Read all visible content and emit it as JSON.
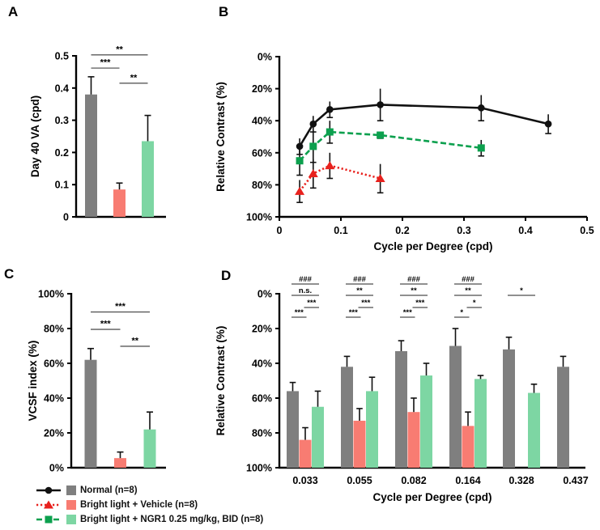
{
  "figure": {
    "panels": [
      {
        "letter": "A"
      },
      {
        "letter": "B"
      },
      {
        "letter": "C"
      },
      {
        "letter": "D"
      }
    ]
  },
  "legend": {
    "items": [
      {
        "label": "Normal (n=8)",
        "line_color": "#111111",
        "marker": "circle",
        "dash": "solid",
        "bar_color": "#7F7F7F"
      },
      {
        "label": "Bright light + Vehicle (n=8)",
        "line_color": "#E8211D",
        "marker": "triangle",
        "dash": "dotted",
        "bar_color": "#F87C72"
      },
      {
        "label": "Bright light + NGR1 0.25 mg/kg, BID (n=8)",
        "line_color": "#0CA04E",
        "marker": "square",
        "dash": "dashed",
        "bar_color": "#7DD6A3"
      }
    ]
  },
  "chart_data": [
    {
      "id": "A",
      "type": "bar",
      "ylabel": "Day 40 VA (cpd)",
      "ylim": [
        0,
        0.5
      ],
      "yticks": [
        {
          "v": 0,
          "label": "0"
        },
        {
          "v": 0.1,
          "label": "0.1"
        },
        {
          "v": 0.2,
          "label": "0.2"
        },
        {
          "v": 0.3,
          "label": "0.3"
        },
        {
          "v": 0.4,
          "label": "0.4"
        },
        {
          "v": 0.5,
          "label": "0.5"
        }
      ],
      "categories": [
        "Normal",
        "Bright light + Vehicle",
        "Bright light + NGR1"
      ],
      "values": [
        0.38,
        0.085,
        0.235
      ],
      "errors": [
        0.055,
        0.02,
        0.08
      ],
      "significance": [
        {
          "pair": [
            0,
            1
          ],
          "label": "***",
          "y": 0.462
        },
        {
          "pair": [
            0,
            2
          ],
          "label": "**",
          "y": 0.503
        },
        {
          "pair": [
            1,
            2
          ],
          "label": "**",
          "y": 0.415
        }
      ]
    },
    {
      "id": "B",
      "type": "line",
      "xlabel": "Cycle per Degree (cpd)",
      "ylabel": "Relative Contrast (%)",
      "y_axis_inverted": true,
      "xlim": [
        0,
        0.5
      ],
      "ylim": [
        0,
        100
      ],
      "xticks": [
        {
          "v": 0,
          "label": "0"
        },
        {
          "v": 0.1,
          "label": "0.1"
        },
        {
          "v": 0.2,
          "label": "0.2"
        },
        {
          "v": 0.3,
          "label": "0.3"
        },
        {
          "v": 0.4,
          "label": "0.4"
        },
        {
          "v": 0.5,
          "label": "0.5"
        }
      ],
      "yticks": [
        {
          "v": 0,
          "label": "0%"
        },
        {
          "v": 20,
          "label": "20%"
        },
        {
          "v": 40,
          "label": "40%"
        },
        {
          "v": 60,
          "label": "60%"
        },
        {
          "v": 80,
          "label": "80%"
        },
        {
          "v": 100,
          "label": "100%"
        }
      ],
      "series": [
        {
          "name": "Normal (n=8)",
          "x": [
            0.033,
            0.055,
            0.082,
            0.164,
            0.328,
            0.437
          ],
          "y": [
            56,
            42,
            33,
            30,
            32,
            42
          ],
          "err": [
            5,
            5,
            5,
            10,
            8,
            6
          ]
        },
        {
          "name": "Bright light + Vehicle (n=8)",
          "x": [
            0.033,
            0.055,
            0.082,
            0.164,
            0.328,
            0.437
          ],
          "y": [
            84,
            73,
            68,
            76,
            null,
            null
          ],
          "err": [
            7,
            9,
            8,
            9,
            null,
            null
          ]
        },
        {
          "name": "Bright light + NGR1 0.25 mg/kg, BID (n=8)",
          "x": [
            0.033,
            0.055,
            0.082,
            0.164,
            0.328,
            0.437
          ],
          "y": [
            65,
            56,
            47,
            49,
            57,
            null
          ],
          "err": [
            9,
            10,
            7,
            2,
            5,
            null
          ]
        }
      ]
    },
    {
      "id": "C",
      "type": "bar",
      "ylabel": "VCSF index (%)",
      "ylim": [
        0,
        100
      ],
      "yticks": [
        {
          "v": 0,
          "label": "0%"
        },
        {
          "v": 20,
          "label": "20%"
        },
        {
          "v": 40,
          "label": "40%"
        },
        {
          "v": 60,
          "label": "60%"
        },
        {
          "v": 80,
          "label": "80%"
        },
        {
          "v": 100,
          "label": "100%"
        }
      ],
      "categories": [
        "Normal",
        "Bright light + Vehicle",
        "Bright light + NGR1"
      ],
      "values": [
        62,
        5.5,
        22
      ],
      "errors": [
        6.5,
        3.5,
        10
      ],
      "significance": [
        {
          "pair": [
            0,
            1
          ],
          "label": "***",
          "y": 79.5
        },
        {
          "pair": [
            0,
            2
          ],
          "label": "***",
          "y": 89.5
        },
        {
          "pair": [
            1,
            2
          ],
          "label": "**",
          "y": 69.8
        }
      ]
    },
    {
      "id": "D",
      "type": "grouped-bar",
      "xlabel": "Cycle per Degree (cpd)",
      "ylabel": "Relative Contrast (%)",
      "y_axis_inverted": true,
      "ylim": [
        0,
        100
      ],
      "yticks": [
        {
          "v": 0,
          "label": "0%"
        },
        {
          "v": 20,
          "label": "20%"
        },
        {
          "v": 40,
          "label": "40%"
        },
        {
          "v": 60,
          "label": "60%"
        },
        {
          "v": 80,
          "label": "80%"
        },
        {
          "v": 100,
          "label": "100%"
        }
      ],
      "categories": [
        "0.033",
        "0.055",
        "0.082",
        "0.164",
        "0.328",
        "0.437"
      ],
      "series": [
        {
          "name": "Normal (n=8)",
          "values": [
            56,
            42,
            33,
            30,
            32,
            42
          ],
          "err": [
            5,
            6,
            6,
            10,
            7,
            6
          ]
        },
        {
          "name": "Bright light + Vehicle (n=8)",
          "values": [
            84,
            73,
            68,
            76,
            null,
            null
          ],
          "err": [
            7,
            7,
            8,
            8,
            null,
            null
          ]
        },
        {
          "name": "Bright light + NGR1 0.25 mg/kg, BID (n=8)",
          "values": [
            65,
            56,
            47,
            49,
            57,
            null
          ],
          "err": [
            9,
            8,
            7,
            2,
            5,
            null
          ]
        }
      ],
      "significance": [
        {
          "group": 0,
          "row": 0,
          "from": 0,
          "to": 2,
          "label": "###"
        },
        {
          "group": 0,
          "row": 1,
          "from": 0,
          "to": 2,
          "label": "n.s."
        },
        {
          "group": 0,
          "row": 2,
          "from": 1,
          "to": 2,
          "label": "***"
        },
        {
          "group": 0,
          "row": 3,
          "from": 0,
          "to": 1,
          "label": "***"
        },
        {
          "group": 1,
          "row": 0,
          "from": 0,
          "to": 2,
          "label": "###"
        },
        {
          "group": 1,
          "row": 1,
          "from": 0,
          "to": 2,
          "label": "**"
        },
        {
          "group": 1,
          "row": 2,
          "from": 1,
          "to": 2,
          "label": "***"
        },
        {
          "group": 1,
          "row": 3,
          "from": 0,
          "to": 1,
          "label": "***"
        },
        {
          "group": 2,
          "row": 0,
          "from": 0,
          "to": 2,
          "label": "###"
        },
        {
          "group": 2,
          "row": 1,
          "from": 0,
          "to": 2,
          "label": "**"
        },
        {
          "group": 2,
          "row": 2,
          "from": 1,
          "to": 2,
          "label": "***"
        },
        {
          "group": 2,
          "row": 3,
          "from": 0,
          "to": 1,
          "label": "***"
        },
        {
          "group": 3,
          "row": 0,
          "from": 0,
          "to": 2,
          "label": "###"
        },
        {
          "group": 3,
          "row": 1,
          "from": 0,
          "to": 2,
          "label": "**"
        },
        {
          "group": 3,
          "row": 2,
          "from": 1,
          "to": 2,
          "label": "*"
        },
        {
          "group": 3,
          "row": 3,
          "from": 0,
          "to": 1,
          "label": "*"
        },
        {
          "group": 4,
          "row": 1,
          "from": 0,
          "to": 2,
          "label": "*"
        }
      ]
    }
  ]
}
